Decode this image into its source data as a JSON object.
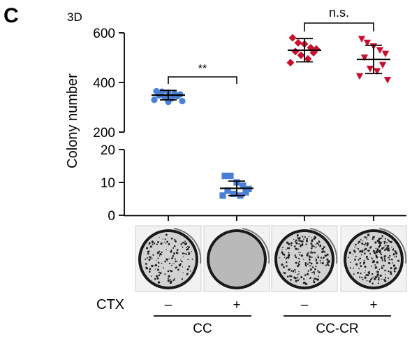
{
  "figure": {
    "panel_label": "c",
    "condition_label": "3D",
    "treatment_row_label": "CTX",
    "treatment_marks": [
      "–",
      "+",
      "–",
      "+"
    ],
    "group_labels": [
      "CC",
      "CC-CR"
    ]
  },
  "chart_data": {
    "type": "scatter",
    "subtype": "dot-plot with mean and SD bars, broken y-axis",
    "ylabel": "Colony number",
    "y_segments": [
      {
        "range": [
          200,
          600
        ],
        "ticks": [
          "200",
          "400",
          "600"
        ]
      },
      {
        "range": [
          0,
          20
        ],
        "ticks": [
          "0",
          "10",
          "20"
        ]
      }
    ],
    "categories": [
      "CC –",
      "CC +",
      "CC-CR –",
      "CC-CR +"
    ],
    "series": [
      {
        "category": "CC –",
        "marker": "circle",
        "color": "#4a7fd6",
        "mean": 349,
        "sd": 19,
        "values": [
          365,
          363,
          360,
          355,
          352,
          348,
          345,
          340,
          336,
          330,
          325,
          322
        ]
      },
      {
        "category": "CC +",
        "marker": "square",
        "color": "#4a7fd6",
        "mean": 8.2,
        "sd": 2.2,
        "values": [
          12,
          12,
          10,
          9,
          8,
          7.5,
          7,
          6.5,
          6,
          6
        ]
      },
      {
        "category": "CC-CR –",
        "marker": "diamond",
        "color": "#c8102e",
        "mean": 530,
        "sd": 47,
        "values": [
          580,
          560,
          555,
          540,
          535,
          525,
          520,
          510,
          495,
          480
        ]
      },
      {
        "category": "CC-CR +",
        "marker": "triangle-down",
        "color": "#c8102e",
        "mean": 493,
        "sd": 57,
        "values": [
          575,
          560,
          545,
          530,
          515,
          500,
          470,
          455,
          445,
          425,
          410
        ]
      }
    ],
    "annotations": [
      {
        "between": [
          "CC –",
          "CC +"
        ],
        "text": "**"
      },
      {
        "between": [
          "CC-CR –",
          "CC-CR +"
        ],
        "text": "n.s."
      }
    ],
    "grid": false,
    "legend": "none"
  },
  "images": {
    "caption_hidden": "",
    "dishes": [
      {
        "category": "CC –",
        "density": "medium",
        "picture": "colony-dish"
      },
      {
        "category": "CC +",
        "density": "none",
        "picture": "colony-dish"
      },
      {
        "category": "CC-CR –",
        "density": "high",
        "picture": "colony-dish"
      },
      {
        "category": "CC-CR +",
        "density": "high",
        "picture": "colony-dish"
      }
    ]
  }
}
